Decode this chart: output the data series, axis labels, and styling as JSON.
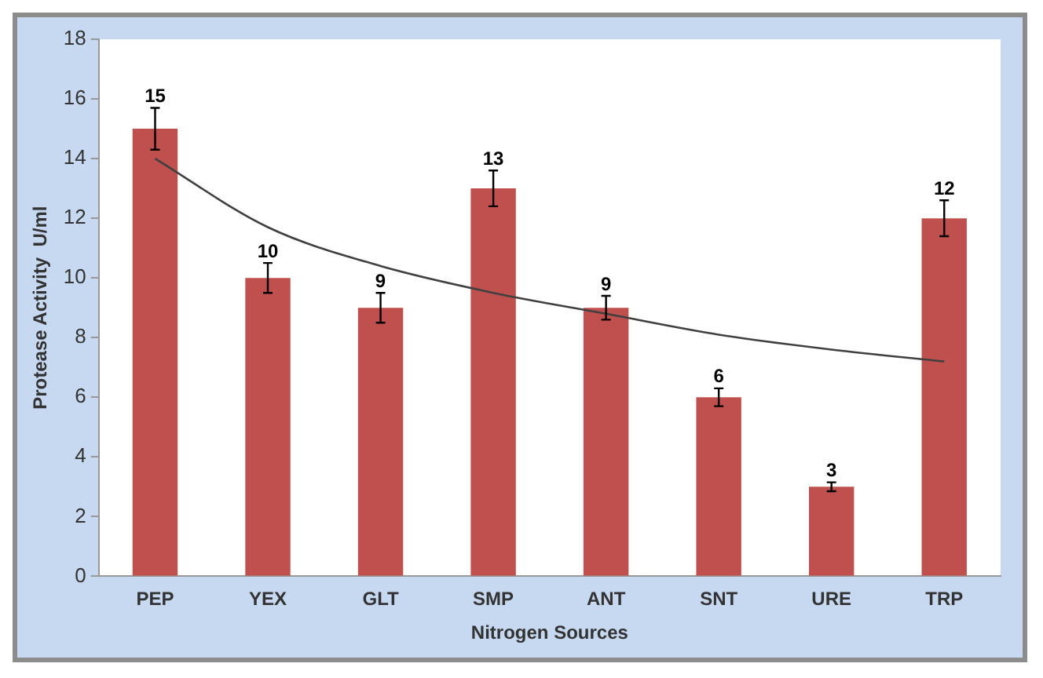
{
  "chart_data": {
    "type": "bar",
    "xlabel": "Nitrogen Sources",
    "ylabel": "Protease Activity  U/ml",
    "categories": [
      "PEP",
      "YEX",
      "GLT",
      "SMP",
      "ANT",
      "SNT",
      "URE",
      "TRP"
    ],
    "series": [
      {
        "color": "#c0504d",
        "values": [
          15,
          10,
          9,
          13,
          9,
          6,
          3,
          12
        ],
        "value_labels": [
          "15",
          "10",
          "9",
          "13",
          "9",
          "6",
          "3",
          "12"
        ],
        "errors": [
          0.7,
          0.5,
          0.5,
          0.6,
          0.4,
          0.3,
          0.15,
          0.6
        ]
      },
      {
        "type": "line",
        "color": "#404040",
        "values": [
          14,
          11.7,
          10.4,
          9.5,
          8.8,
          8.1,
          7.6,
          7.2
        ]
      }
    ],
    "ylim": [
      0,
      18
    ],
    "yticks": [
      0,
      2,
      4,
      6,
      8,
      10,
      12,
      14,
      16,
      18
    ],
    "grid": false,
    "legend": false,
    "marker": "none"
  }
}
